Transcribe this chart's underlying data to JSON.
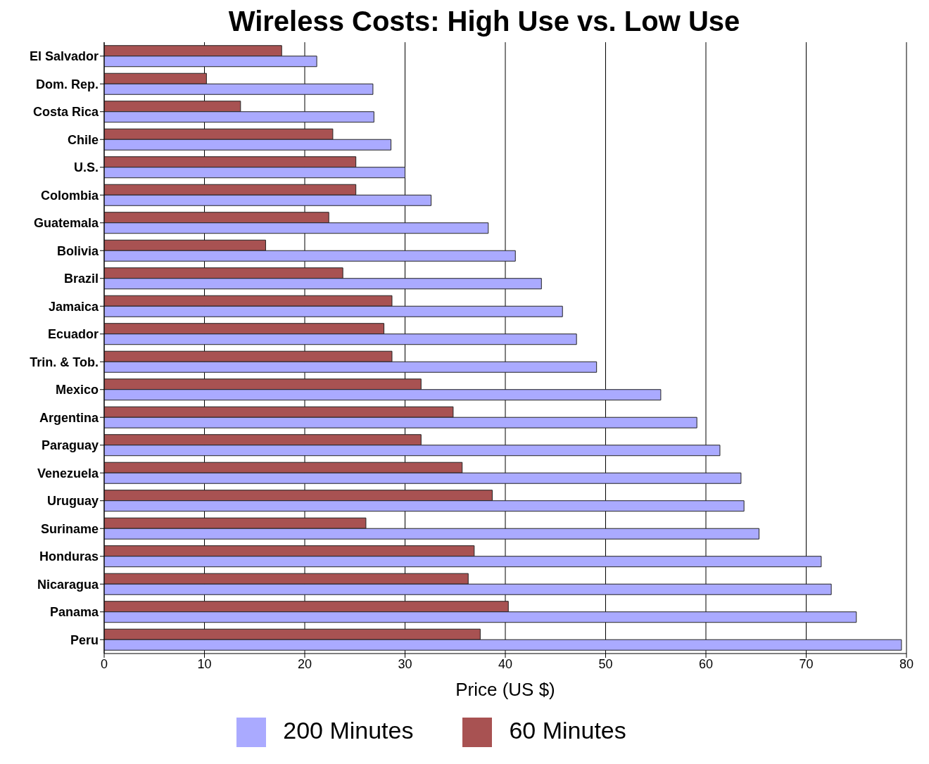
{
  "chart_data": {
    "type": "bar",
    "orientation": "horizontal",
    "title": "Wireless Costs: High Use vs. Low Use",
    "xlabel": "Price (US $)",
    "categories": [
      "El Salvador",
      "Dom. Rep.",
      "Costa Rica",
      "Chile",
      "U.S.",
      "Colombia",
      "Guatemala",
      "Bolivia",
      "Brazil",
      "Jamaica",
      "Ecuador",
      "Trin. & Tob.",
      "Mexico",
      "Argentina",
      "Paraguay",
      "Venezuela",
      "Uruguay",
      "Suriname",
      "Honduras",
      "Nicaragua",
      "Panama",
      "Peru"
    ],
    "series": [
      {
        "name": "60 Minutes",
        "color": "#a85252",
        "values": [
          17.7,
          10.2,
          13.6,
          22.8,
          25.1,
          25.1,
          22.4,
          16.1,
          23.8,
          28.7,
          27.9,
          28.7,
          31.6,
          34.8,
          31.6,
          35.7,
          38.7,
          26.1,
          36.9,
          36.3,
          40.3,
          37.5
        ]
      },
      {
        "name": "200 Minutes",
        "color": "#aaaaff",
        "values": [
          21.2,
          26.8,
          26.9,
          28.6,
          30.0,
          32.6,
          38.3,
          41.0,
          43.6,
          45.7,
          47.1,
          49.1,
          55.5,
          59.1,
          61.4,
          63.5,
          63.8,
          65.3,
          71.5,
          72.5,
          75.0,
          79.5
        ]
      }
    ],
    "xlim": [
      0,
      80
    ],
    "xticks": [
      0,
      10,
      20,
      30,
      40,
      50,
      60,
      70,
      80
    ],
    "grid": "x",
    "legend": "bottom"
  }
}
